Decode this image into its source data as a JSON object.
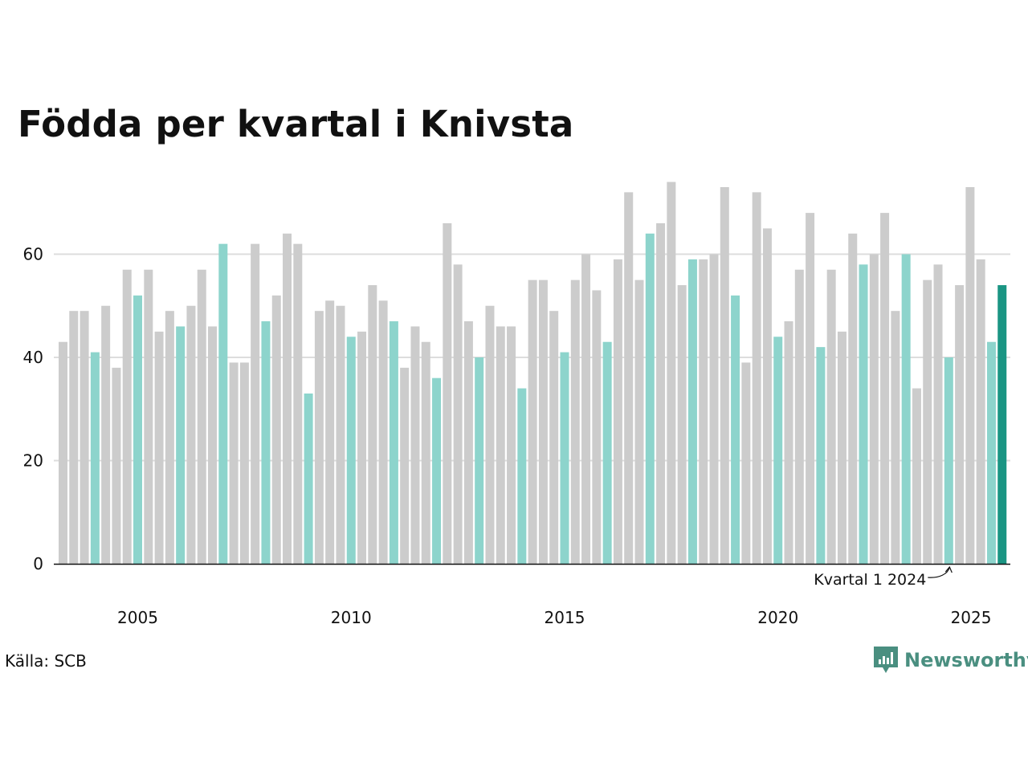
{
  "chart_data": {
    "type": "bar",
    "title": "Födda per kvartal i Knivsta",
    "xlabel": "",
    "ylabel": "",
    "ylim": [
      0,
      75
    ],
    "y_ticks": [
      0,
      20,
      40,
      60
    ],
    "x_ticks": [
      "2005",
      "2010",
      "2015",
      "2020",
      "2025"
    ],
    "grid": true,
    "first_period": "2003 Q2",
    "values": [
      43,
      49,
      49,
      41,
      50,
      38,
      57,
      52,
      57,
      45,
      49,
      46,
      50,
      57,
      46,
      62,
      39,
      39,
      62,
      47,
      52,
      64,
      62,
      33,
      49,
      51,
      50,
      44,
      45,
      54,
      51,
      47,
      38,
      46,
      43,
      36,
      66,
      58,
      47,
      40,
      50,
      46,
      46,
      34,
      55,
      55,
      49,
      41,
      55,
      60,
      53,
      43,
      59,
      72,
      55,
      64,
      66,
      74,
      54,
      59,
      59,
      60,
      73,
      52,
      39,
      72,
      65,
      44,
      47,
      57,
      68,
      42,
      57,
      45,
      64,
      58,
      60,
      68,
      49,
      60,
      34,
      55,
      58,
      40,
      54,
      73,
      59,
      43,
      54
    ],
    "highlight_quarter": "Kvartal 1",
    "colors": {
      "other": "#cccccc",
      "quarter1": "#8dd4cc",
      "latest": "#1a9583",
      "grid": "#dddddd",
      "axis": "#111111"
    },
    "annotation": {
      "text": "Kvartal 1 2024",
      "target_period": "2024 Q1"
    },
    "source": "Källa: SCB"
  },
  "logo": {
    "text": "Newsworthy",
    "icon": "bar-chart-icon",
    "color": "#4a8f80"
  }
}
